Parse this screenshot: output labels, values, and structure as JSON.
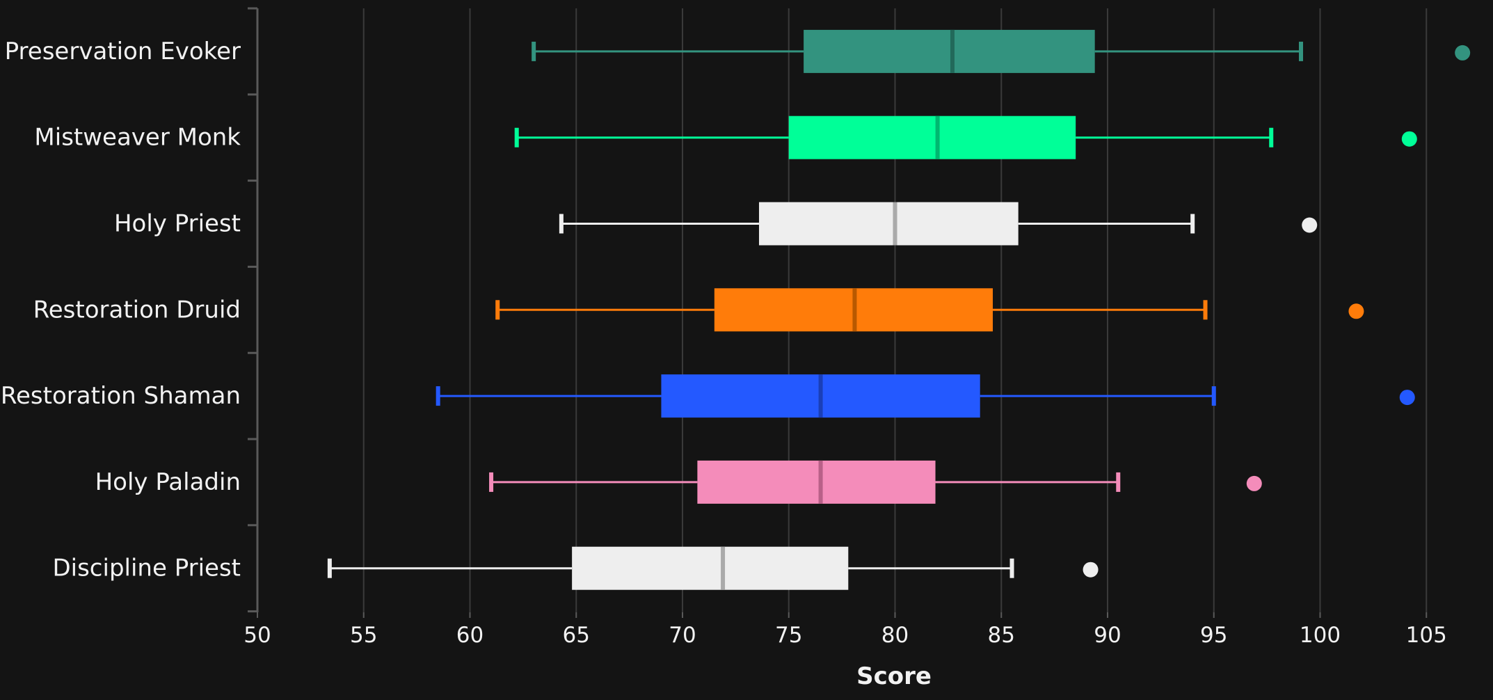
{
  "chart_data": {
    "type": "box",
    "orientation": "horizontal",
    "title": "",
    "xlabel": "Score",
    "ylabel": "",
    "xlim": [
      50,
      106.5
    ],
    "xticks": [
      50,
      55,
      60,
      65,
      70,
      75,
      80,
      85,
      90,
      95,
      100,
      105
    ],
    "grid": "vertical",
    "categories": [
      "Preservation Evoker",
      "Mistweaver Monk",
      "Holy Priest",
      "Restoration Druid",
      "Restoration Shaman",
      "Holy Paladin",
      "Discipline Priest"
    ],
    "series": [
      {
        "category": "Preservation Evoker",
        "color": "#33937f",
        "median_color": "#22695a",
        "min": 63.0,
        "q1": 75.7,
        "median": 82.7,
        "q3": 89.4,
        "max": 99.1,
        "outliers": [
          106.7
        ]
      },
      {
        "category": "Mistweaver Monk",
        "color": "#00ff98",
        "median_color": "#00b870",
        "min": 62.2,
        "q1": 75.0,
        "median": 82.0,
        "q3": 88.5,
        "max": 97.7,
        "outliers": [
          104.2
        ]
      },
      {
        "category": "Holy Priest",
        "color": "#eeeeee",
        "median_color": "#aaaaaa",
        "min": 64.3,
        "q1": 73.6,
        "median": 80.0,
        "q3": 85.8,
        "max": 94.0,
        "outliers": [
          99.5
        ]
      },
      {
        "category": "Restoration Druid",
        "color": "#ff7c0a",
        "median_color": "#b85800",
        "min": 61.3,
        "q1": 71.5,
        "median": 78.1,
        "q3": 84.6,
        "max": 94.6,
        "outliers": [
          101.7
        ]
      },
      {
        "category": "Restoration Shaman",
        "color": "#2459ff",
        "median_color": "#1a3fb8",
        "min": 58.5,
        "q1": 69.0,
        "median": 76.5,
        "q3": 84.0,
        "max": 95.0,
        "outliers": [
          104.1
        ]
      },
      {
        "category": "Holy Paladin",
        "color": "#f48cba",
        "median_color": "#b86088",
        "min": 61.0,
        "q1": 70.7,
        "median": 76.5,
        "q3": 81.9,
        "max": 90.5,
        "outliers": [
          96.9
        ]
      },
      {
        "category": "Discipline Priest",
        "color": "#eeeeee",
        "median_color": "#aaaaaa",
        "min": 53.4,
        "q1": 64.8,
        "median": 71.9,
        "q3": 77.8,
        "max": 85.5,
        "outliers": [
          89.2
        ]
      }
    ]
  }
}
